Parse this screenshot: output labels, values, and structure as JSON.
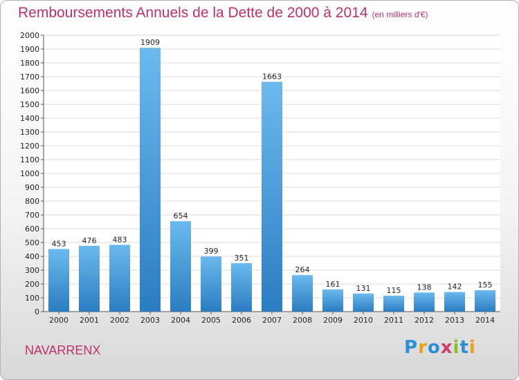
{
  "title": "Remboursements Annuels de la Dette de 2000 à 2014",
  "subtitle": "(en milliers d'€)",
  "commune": "NAVARRENX",
  "logo": {
    "parts": [
      "P",
      "r",
      "o",
      "x",
      "i",
      "t",
      "i"
    ],
    "text": "Proxiti"
  },
  "colors": {
    "title": "#c0306a",
    "bar_top": "#6bb9ee",
    "bar_bottom": "#2a7dc1",
    "grid": "#d8d8d8"
  },
  "chart_data": {
    "type": "bar",
    "title": "Remboursements Annuels de la Dette de 2000 à 2014",
    "subtitle": "(en milliers d'€)",
    "xlabel": "",
    "ylabel": "",
    "categories": [
      "2000",
      "2001",
      "2002",
      "2003",
      "2004",
      "2005",
      "2006",
      "2007",
      "2008",
      "2009",
      "2010",
      "2011",
      "2012",
      "2013",
      "2014"
    ],
    "values": [
      453,
      476,
      483,
      1909,
      654,
      399,
      351,
      1663,
      264,
      161,
      131,
      115,
      138,
      142,
      155
    ],
    "ylim": [
      0,
      2000
    ],
    "ytick_step": 100,
    "grid": true,
    "legend": "none"
  }
}
